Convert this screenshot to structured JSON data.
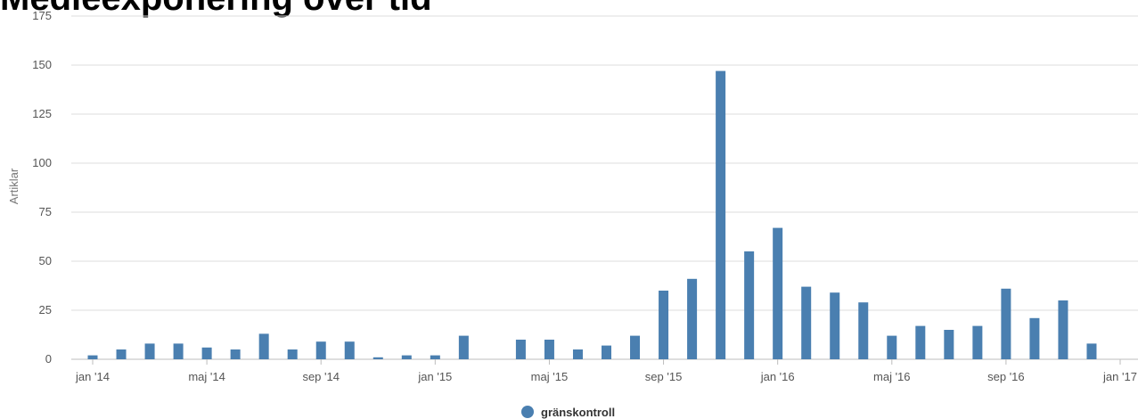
{
  "chart_data": {
    "type": "bar",
    "title": "Medieexponering över tid",
    "ylabel": "Artiklar",
    "xlabel": "",
    "ylim": [
      0,
      175
    ],
    "yticks": [
      0,
      25,
      50,
      75,
      100,
      125,
      150,
      175
    ],
    "x_start": "2014-01",
    "x_end": "2017-01",
    "xticks": [
      {
        "label": "jan '14",
        "month": "2014-01"
      },
      {
        "label": "maj '14",
        "month": "2014-05"
      },
      {
        "label": "sep '14",
        "month": "2014-09"
      },
      {
        "label": "jan '15",
        "month": "2015-01"
      },
      {
        "label": "maj '15",
        "month": "2015-05"
      },
      {
        "label": "sep '15",
        "month": "2015-09"
      },
      {
        "label": "jan '16",
        "month": "2016-01"
      },
      {
        "label": "maj '16",
        "month": "2016-05"
      },
      {
        "label": "sep '16",
        "month": "2016-09"
      },
      {
        "label": "jan '17",
        "month": "2017-01"
      }
    ],
    "categories": [
      "2014-01",
      "2014-02",
      "2014-03",
      "2014-04",
      "2014-05",
      "2014-06",
      "2014-07",
      "2014-08",
      "2014-09",
      "2014-10",
      "2014-11",
      "2014-12",
      "2015-01",
      "2015-02",
      "2015-03",
      "2015-04",
      "2015-05",
      "2015-06",
      "2015-07",
      "2015-08",
      "2015-09",
      "2015-10",
      "2015-11",
      "2015-12",
      "2016-01",
      "2016-02",
      "2016-03",
      "2016-04",
      "2016-05",
      "2016-06",
      "2016-07",
      "2016-08",
      "2016-09",
      "2016-10",
      "2016-11",
      "2016-12"
    ],
    "series": [
      {
        "name": "gränskontroll",
        "color": "#4a7fb0",
        "values": [
          2,
          5,
          8,
          8,
          6,
          5,
          13,
          5,
          9,
          9,
          1,
          2,
          2,
          12,
          0,
          10,
          10,
          5,
          7,
          12,
          35,
          41,
          147,
          55,
          67,
          37,
          34,
          29,
          12,
          17,
          15,
          17,
          36,
          21,
          30,
          8
        ]
      }
    ],
    "grid": true,
    "legend": "bottom-center"
  }
}
